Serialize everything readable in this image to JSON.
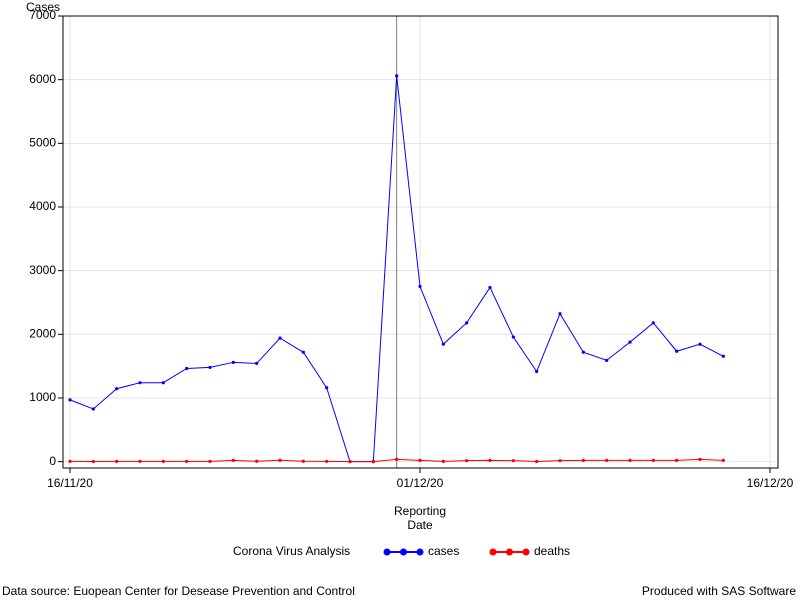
{
  "chart_data": {
    "type": "line",
    "y_label": "Cases",
    "x_label": [
      "Reporting",
      "Date"
    ],
    "legend_title": "Corona Virus Analysis",
    "footnote_left": "Data source: Euopean Center for Desease Prevention and Control",
    "footnote_right": "Produced with SAS Software",
    "x": [
      "16/11/20",
      "17/11/20",
      "18/11/20",
      "19/11/20",
      "20/11/20",
      "21/11/20",
      "22/11/20",
      "23/11/20",
      "24/11/20",
      "25/11/20",
      "26/11/20",
      "27/11/20",
      "28/11/20",
      "29/11/20",
      "30/11/20",
      "01/12/20",
      "02/12/20",
      "03/12/20",
      "04/12/20",
      "05/12/20",
      "06/12/20",
      "07/12/20",
      "08/12/20",
      "09/12/20",
      "10/12/20",
      "11/12/20",
      "12/12/20",
      "13/12/20",
      "14/12/20"
    ],
    "series": [
      {
        "name": "cases",
        "color": "#0000ff",
        "values": [
          970,
          827,
          1145,
          1240,
          1240,
          1463,
          1480,
          1560,
          1543,
          1940,
          1718,
          1160,
          0,
          0,
          6060,
          2752,
          1845,
          2180,
          2736,
          1957,
          1416,
          2323,
          1718,
          1591,
          1877,
          2180,
          1734,
          1845,
          1655
        ]
      },
      {
        "name": "deaths",
        "color": "#ff0000",
        "values": [
          5,
          3,
          4,
          5,
          4,
          4,
          5,
          20,
          6,
          22,
          6,
          5,
          0,
          0,
          35,
          20,
          4,
          15,
          20,
          15,
          3,
          15,
          20,
          20,
          20,
          20,
          20,
          35,
          20
        ]
      }
    ],
    "xlim": [
      "16/11/20",
      "16/12/20"
    ],
    "xticks": [
      "16/11/20",
      "01/12/20",
      "16/12/20"
    ],
    "ylim": [
      -100,
      7000
    ],
    "yticks": [
      0,
      1000,
      2000,
      3000,
      4000,
      5000,
      6000,
      7000
    ],
    "reference_line_x": "30/11/20",
    "grid": true
  }
}
